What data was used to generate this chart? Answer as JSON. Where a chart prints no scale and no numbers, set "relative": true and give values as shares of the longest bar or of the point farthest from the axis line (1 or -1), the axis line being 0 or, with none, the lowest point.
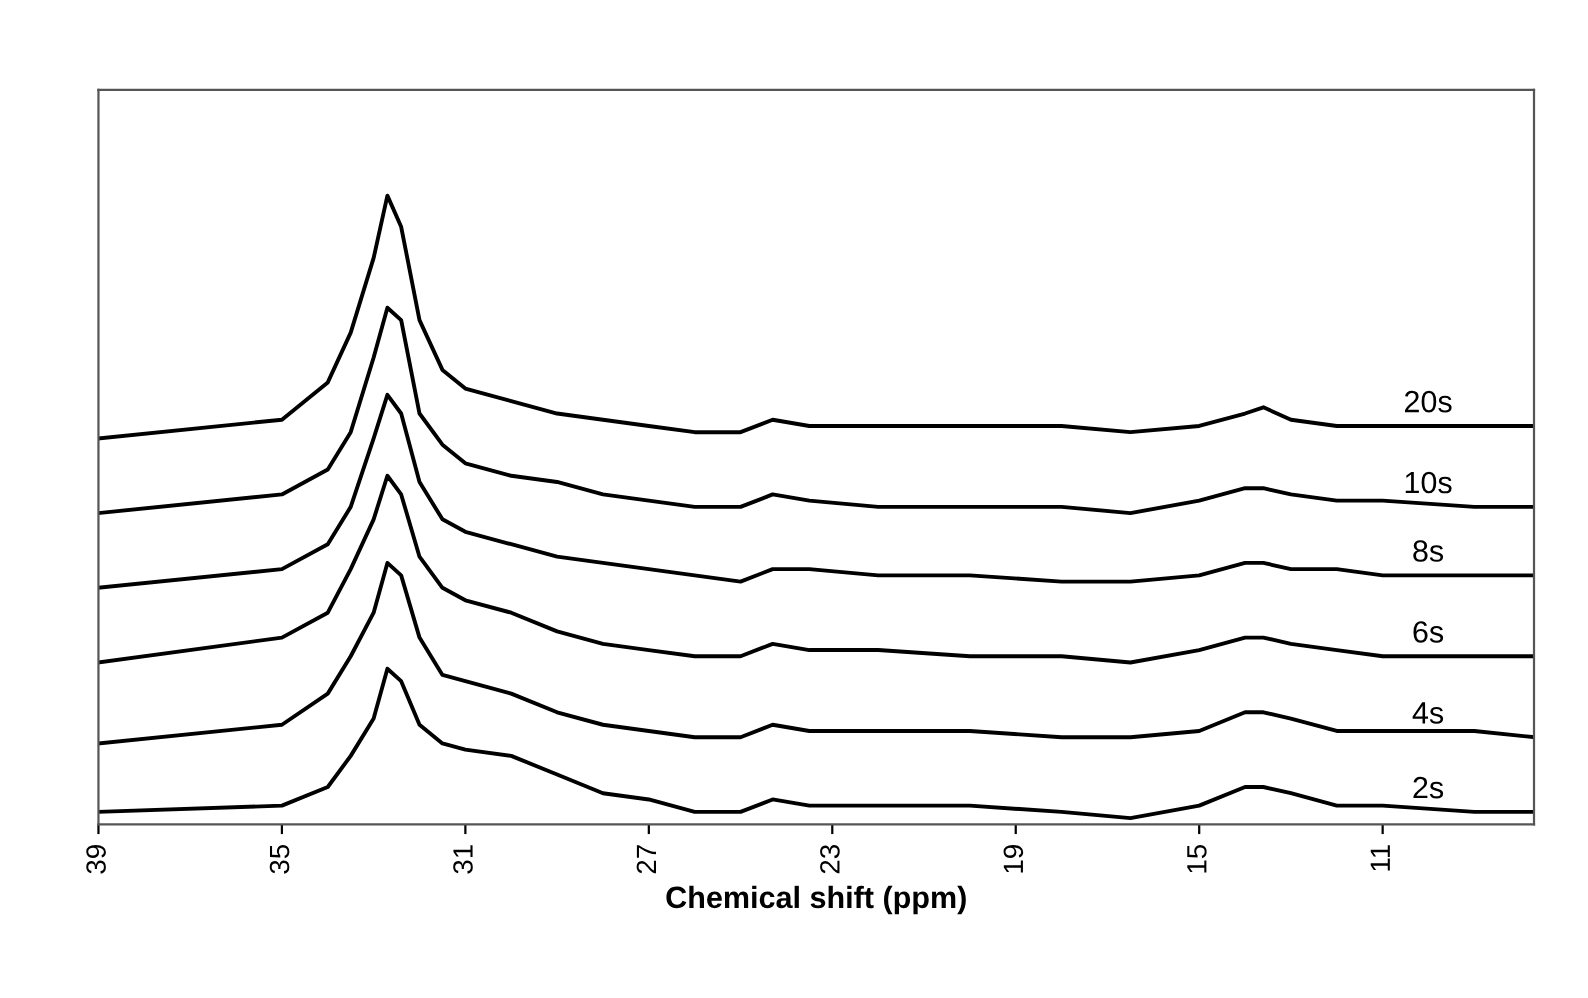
{
  "chart_data": {
    "type": "line",
    "relative": true,
    "xlabel": "Chemical shift (ppm)",
    "x": [
      39,
      35,
      34,
      33.5,
      33,
      32.7,
      32.4,
      32,
      31.5,
      31,
      30,
      29,
      28,
      27,
      26,
      25,
      24.3,
      23.5,
      22,
      20,
      18,
      16.5,
      15,
      14,
      13.6,
      13,
      12,
      11,
      9,
      7.7
    ],
    "xlim": [
      39,
      7.7
    ],
    "xticks": [
      39,
      35,
      31,
      27,
      23,
      19,
      15,
      11
    ],
    "series": [
      {
        "name": "20s",
        "color": "#000000",
        "values": [
          0.61,
          0.64,
          0.7,
          0.78,
          0.9,
          1.0,
          0.95,
          0.8,
          0.72,
          0.69,
          0.67,
          0.65,
          0.64,
          0.63,
          0.62,
          0.62,
          0.64,
          0.63,
          0.63,
          0.63,
          0.63,
          0.62,
          0.63,
          0.65,
          0.66,
          0.64,
          0.63,
          0.63,
          0.63,
          0.63
        ]
      },
      {
        "name": "10s",
        "color": "#000000",
        "values": [
          0.49,
          0.52,
          0.56,
          0.62,
          0.74,
          0.82,
          0.8,
          0.65,
          0.6,
          0.57,
          0.55,
          0.54,
          0.52,
          0.51,
          0.5,
          0.5,
          0.52,
          0.51,
          0.5,
          0.5,
          0.5,
          0.49,
          0.51,
          0.53,
          0.53,
          0.52,
          0.51,
          0.51,
          0.5,
          0.5
        ]
      },
      {
        "name": "8s",
        "color": "#000000",
        "values": [
          0.37,
          0.4,
          0.44,
          0.5,
          0.61,
          0.68,
          0.65,
          0.54,
          0.48,
          0.46,
          0.44,
          0.42,
          0.41,
          0.4,
          0.39,
          0.38,
          0.4,
          0.4,
          0.39,
          0.39,
          0.38,
          0.38,
          0.39,
          0.41,
          0.41,
          0.4,
          0.4,
          0.39,
          0.39,
          0.39
        ]
      },
      {
        "name": "6s",
        "color": "#000000",
        "values": [
          0.25,
          0.29,
          0.33,
          0.4,
          0.48,
          0.55,
          0.52,
          0.42,
          0.37,
          0.35,
          0.33,
          0.3,
          0.28,
          0.27,
          0.26,
          0.26,
          0.28,
          0.27,
          0.27,
          0.26,
          0.26,
          0.25,
          0.27,
          0.29,
          0.29,
          0.28,
          0.27,
          0.26,
          0.26,
          0.26
        ]
      },
      {
        "name": "4s",
        "color": "#000000",
        "values": [
          0.12,
          0.15,
          0.2,
          0.26,
          0.33,
          0.41,
          0.39,
          0.29,
          0.23,
          0.22,
          0.2,
          0.17,
          0.15,
          0.14,
          0.13,
          0.13,
          0.15,
          0.14,
          0.14,
          0.14,
          0.13,
          0.13,
          0.14,
          0.17,
          0.17,
          0.16,
          0.14,
          0.14,
          0.14,
          0.13
        ]
      },
      {
        "name": "2s",
        "color": "#000000",
        "values": [
          0.01,
          0.02,
          0.05,
          0.1,
          0.16,
          0.24,
          0.22,
          0.15,
          0.12,
          0.11,
          0.1,
          0.07,
          0.04,
          0.03,
          0.01,
          0.01,
          0.03,
          0.02,
          0.02,
          0.02,
          0.01,
          0.0,
          0.02,
          0.05,
          0.05,
          0.04,
          0.02,
          0.02,
          0.01,
          0.01
        ]
      }
    ],
    "grid": false,
    "legend": false,
    "tick_labels": "x"
  }
}
